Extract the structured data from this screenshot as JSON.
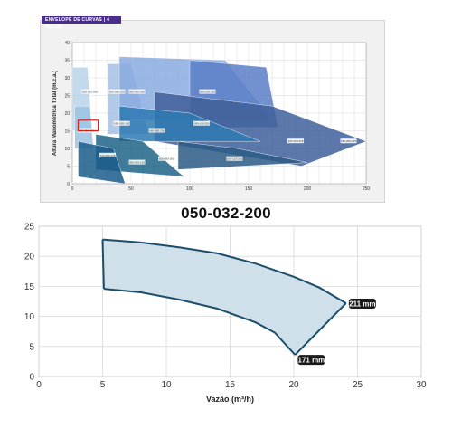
{
  "overview": {
    "header": "ENVELOPE DE CURVAS | 4 POLOS",
    "ylabel": "Altura Manométrica Total (m.c.a.)",
    "xticks": [
      "0",
      "50",
      "100",
      "150",
      "200",
      "250"
    ],
    "yticks": [
      "0",
      "5",
      "10",
      "15",
      "20",
      "25",
      "30",
      "35",
      "40"
    ]
  },
  "chart_data": [
    {
      "type": "area",
      "title": "",
      "ylabel": "Altura Manométrica Total (m.c.a.)",
      "xlabel": "",
      "xlim": [
        0,
        250
      ],
      "ylim": [
        0,
        40
      ],
      "grid": true,
      "series": [
        {
          "values": [
            [
              0,
              33
            ],
            [
              13,
              33
            ],
            [
              17,
              15
            ],
            [
              0,
              15
            ]
          ],
          "color": "#b8d4ea"
        },
        {
          "values": [
            [
              2,
              22
            ],
            [
              15,
              22
            ],
            [
              18,
              10
            ],
            [
              2,
              10
            ]
          ],
          "color": "#9cc3e3"
        },
        {
          "values": [
            [
              30,
              34
            ],
            [
              50,
              34
            ],
            [
              65,
              14
            ],
            [
              30,
              14
            ]
          ],
          "color": "#a6c0e4"
        },
        {
          "values": [
            [
              40,
              36
            ],
            [
              130,
              35
            ],
            [
              170,
              18
            ],
            [
              40,
              18
            ]
          ],
          "color": "#8aaadf"
        },
        {
          "values": [
            [
              100,
              35
            ],
            [
              165,
              33
            ],
            [
              175,
              16
            ],
            [
              100,
              16
            ]
          ],
          "color": "#5b7ec7"
        },
        {
          "values": [
            [
              70,
              26
            ],
            [
              170,
              22
            ],
            [
              250,
              12
            ],
            [
              195,
              5
            ],
            [
              70,
              12
            ]
          ],
          "color": "#3f5f9a"
        },
        {
          "values": [
            [
              40,
              22
            ],
            [
              100,
              20
            ],
            [
              160,
              12
            ],
            [
              40,
              12
            ]
          ],
          "color": "#2d7ab3"
        },
        {
          "values": [
            [
              20,
              14
            ],
            [
              60,
              12
            ],
            [
              95,
              2
            ],
            [
              20,
              4
            ]
          ],
          "color": "#1f6487"
        },
        {
          "values": [
            [
              90,
              12
            ],
            [
              140,
              10
            ],
            [
              200,
              6
            ],
            [
              90,
              4
            ]
          ],
          "color": "#2b5a86"
        },
        {
          "values": [
            [
              5,
              12
            ],
            [
              35,
              10
            ],
            [
              45,
              0
            ],
            [
              5,
              2
            ]
          ],
          "color": "#1a5c8a"
        }
      ],
      "labels": [
        {
          "x": 15,
          "y": 26,
          "text": "025-032-200"
        },
        {
          "x": 12,
          "y": 15,
          "text": "032-050-160"
        },
        {
          "x": 38,
          "y": 26,
          "text": "050-065-200"
        },
        {
          "x": 55,
          "y": 26,
          "text": "050-080-250"
        },
        {
          "x": 115,
          "y": 26,
          "text": "080-100-250"
        },
        {
          "x": 42,
          "y": 17,
          "text": "050-065-160"
        },
        {
          "x": 72,
          "y": 15,
          "text": "065-080-200"
        },
        {
          "x": 110,
          "y": 17,
          "text": "080-100-200"
        },
        {
          "x": 190,
          "y": 12,
          "text": "125-150-315"
        },
        {
          "x": 138,
          "y": 7,
          "text": "100-125-250"
        },
        {
          "x": 80,
          "y": 7,
          "text": "065-080-160"
        },
        {
          "x": 30,
          "y": 8,
          "text": "032-050-125"
        },
        {
          "x": 55,
          "y": 6,
          "text": "050-065-125"
        },
        {
          "x": 235,
          "y": 12,
          "text": "150-200-315"
        }
      ],
      "highlight": {
        "x": [
          5,
          22
        ],
        "y": [
          15,
          18
        ],
        "color": "#d0231f"
      }
    },
    {
      "type": "area",
      "title": "050-032-200",
      "xlabel": "Vazão (m³/h)",
      "ylabel": "",
      "xlim": [
        0,
        30
      ],
      "ylim": [
        0,
        25
      ],
      "xticks": [
        0,
        5,
        10,
        15,
        20,
        25,
        30
      ],
      "yticks": [
        0,
        5,
        10,
        15,
        20,
        25
      ],
      "grid": true,
      "series": [
        {
          "name": "211 mm",
          "values": [
            [
              5.0,
              22.8
            ],
            [
              8.0,
              22.3
            ],
            [
              11.0,
              21.5
            ],
            [
              14.0,
              20.5
            ],
            [
              17.0,
              18.8
            ],
            [
              20.0,
              16.6
            ],
            [
              22.0,
              14.8
            ],
            [
              24.1,
              12.2
            ]
          ]
        },
        {
          "name": "171 mm",
          "values": [
            [
              5.1,
              14.6
            ],
            [
              8.0,
              14.0
            ],
            [
              11.0,
              12.8
            ],
            [
              14.0,
              11.3
            ],
            [
              17.0,
              9.0
            ],
            [
              18.5,
              7.3
            ],
            [
              20.1,
              3.6
            ]
          ]
        }
      ],
      "fill": "#cfe0ea",
      "stroke": "#1c4e6b"
    }
  ]
}
